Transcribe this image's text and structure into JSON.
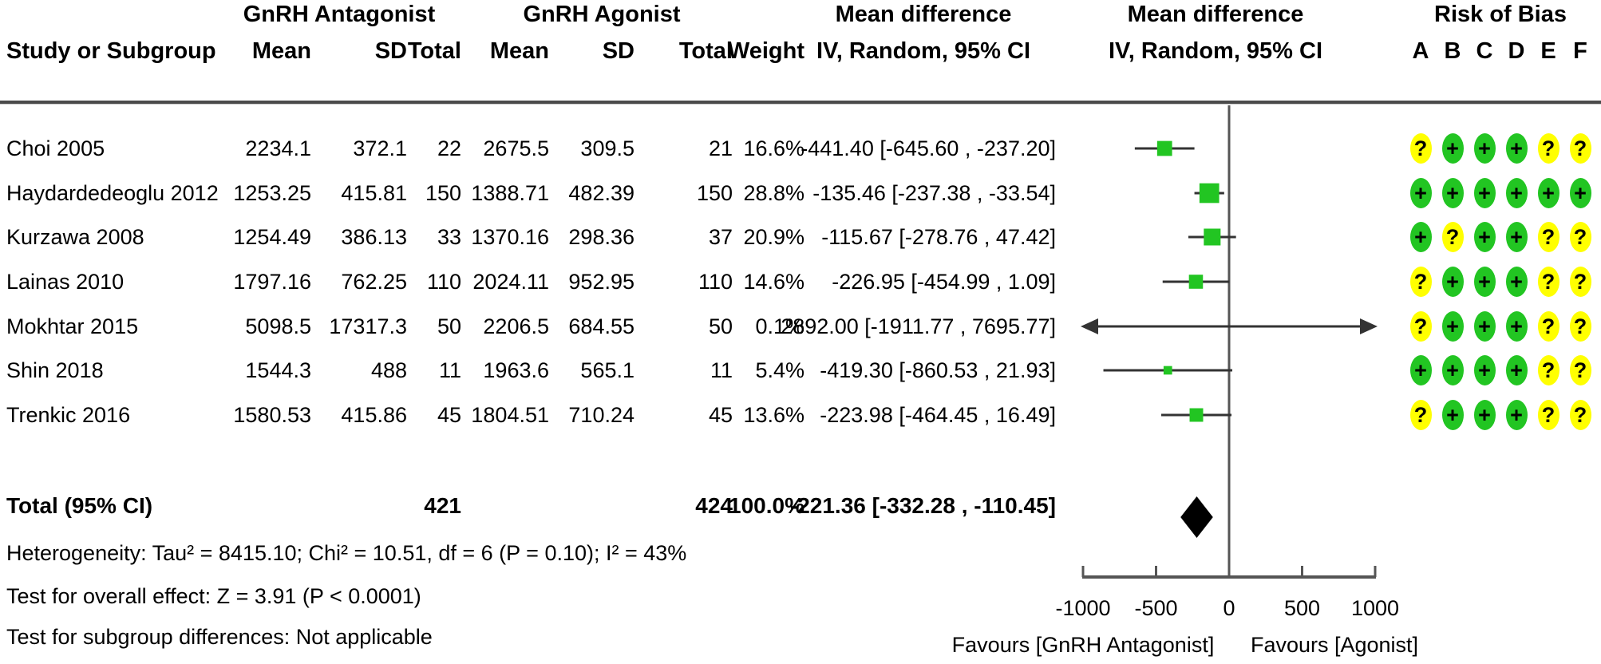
{
  "header": {
    "study_col": "Study or Subgroup",
    "group1": "GnRH Antagonist",
    "group2": "GnRH Agonist",
    "mean": "Mean",
    "sd": "SD",
    "total": "Total",
    "weight": "Weight",
    "md_title": "Mean difference",
    "md_sub": "IV, Random, 95% CI",
    "rob_title": "Risk of Bias",
    "rob_domains": [
      "A",
      "B",
      "C",
      "D",
      "E",
      "F"
    ]
  },
  "footer": {
    "heterogeneity": "Heterogeneity: Tau² = 8415.10; Chi² = 10.51, df = 6 (P = 0.10); I² = 43%",
    "overall_effect": "Test for overall effect: Z = 3.91 (P < 0.0001)",
    "subgroup": "Test for subgroup differences: Not applicable"
  },
  "colors": {
    "square_green": "#22c522",
    "rob_green": "#22c522",
    "rob_yellow": "#ffff00",
    "diamond_black": "#000000",
    "line_gray": "#555555",
    "ci_line": "#333333"
  },
  "chart_data": {
    "type": "scatter",
    "plot_style": "forest",
    "effect_measure": "Mean difference, IV, Random, 95% CI",
    "xlim": [
      -1000,
      1000
    ],
    "axis_ticks": [
      -1000,
      -500,
      0,
      500,
      1000
    ],
    "favours_left": "Favours [GnRH Antagonist]",
    "favours_right": "Favours [Agonist]",
    "studies": [
      {
        "name": "Choi 2005",
        "mean1": "2234.1",
        "sd1": "372.1",
        "total1": "22",
        "mean2": "2675.5",
        "sd2": "309.5",
        "total2": "21",
        "weight": "16.6%",
        "weight_pct": 16.6,
        "md": -441.4,
        "lo": -645.6,
        "hi": -237.2,
        "ci_text": "-441.40 [-645.60 , -237.20]",
        "rob": [
          "?",
          "+",
          "+",
          "+",
          "?",
          "?"
        ]
      },
      {
        "name": "Haydardedeoglu 2012",
        "mean1": "1253.25",
        "sd1": "415.81",
        "total1": "150",
        "mean2": "1388.71",
        "sd2": "482.39",
        "total2": "150",
        "weight": "28.8%",
        "weight_pct": 28.8,
        "md": -135.46,
        "lo": -237.38,
        "hi": -33.54,
        "ci_text": "-135.46 [-237.38 , -33.54]",
        "rob": [
          "+",
          "+",
          "+",
          "+",
          "+",
          "+"
        ]
      },
      {
        "name": "Kurzawa 2008",
        "mean1": "1254.49",
        "sd1": "386.13",
        "total1": "33",
        "mean2": "1370.16",
        "sd2": "298.36",
        "total2": "37",
        "weight": "20.9%",
        "weight_pct": 20.9,
        "md": -115.67,
        "lo": -278.76,
        "hi": 47.42,
        "ci_text": "-115.67 [-278.76 , 47.42]",
        "rob": [
          "+",
          "?",
          "+",
          "+",
          "?",
          "?"
        ]
      },
      {
        "name": "Lainas 2010",
        "mean1": "1797.16",
        "sd1": "762.25",
        "total1": "110",
        "mean2": "2024.11",
        "sd2": "952.95",
        "total2": "110",
        "weight": "14.6%",
        "weight_pct": 14.6,
        "md": -226.95,
        "lo": -454.99,
        "hi": 1.09,
        "ci_text": "-226.95 [-454.99 , 1.09]",
        "rob": [
          "?",
          "+",
          "+",
          "+",
          "?",
          "?"
        ]
      },
      {
        "name": "Mokhtar 2015",
        "mean1": "5098.5",
        "sd1": "17317.3",
        "total1": "50",
        "mean2": "2206.5",
        "sd2": "684.55",
        "total2": "50",
        "weight": "0.1%",
        "weight_pct": 0.1,
        "md": 2892.0,
        "lo": -1911.77,
        "hi": 7695.77,
        "ci_text": "2892.00 [-1911.77 , 7695.77]",
        "rob": [
          "?",
          "+",
          "+",
          "+",
          "?",
          "?"
        ]
      },
      {
        "name": "Shin 2018",
        "mean1": "1544.3",
        "sd1": "488",
        "total1": "11",
        "mean2": "1963.6",
        "sd2": "565.1",
        "total2": "11",
        "weight": "5.4%",
        "weight_pct": 5.4,
        "md": -419.3,
        "lo": -860.53,
        "hi": 21.93,
        "ci_text": "-419.30 [-860.53 , 21.93]",
        "rob": [
          "+",
          "+",
          "+",
          "+",
          "?",
          "?"
        ]
      },
      {
        "name": "Trenkic 2016",
        "mean1": "1580.53",
        "sd1": "415.86",
        "total1": "45",
        "mean2": "1804.51",
        "sd2": "710.24",
        "total2": "45",
        "weight": "13.6%",
        "weight_pct": 13.6,
        "md": -223.98,
        "lo": -464.45,
        "hi": 16.49,
        "ci_text": "-223.98 [-464.45 , 16.49]",
        "rob": [
          "?",
          "+",
          "+",
          "+",
          "?",
          "?"
        ]
      }
    ],
    "total": {
      "label": "Total (95% CI)",
      "total1": "421",
      "total2": "424",
      "weight": "100.0%",
      "md": -221.36,
      "lo": -332.28,
      "hi": -110.45,
      "ci_text": "-221.36 [-332.28 , -110.45]"
    }
  }
}
